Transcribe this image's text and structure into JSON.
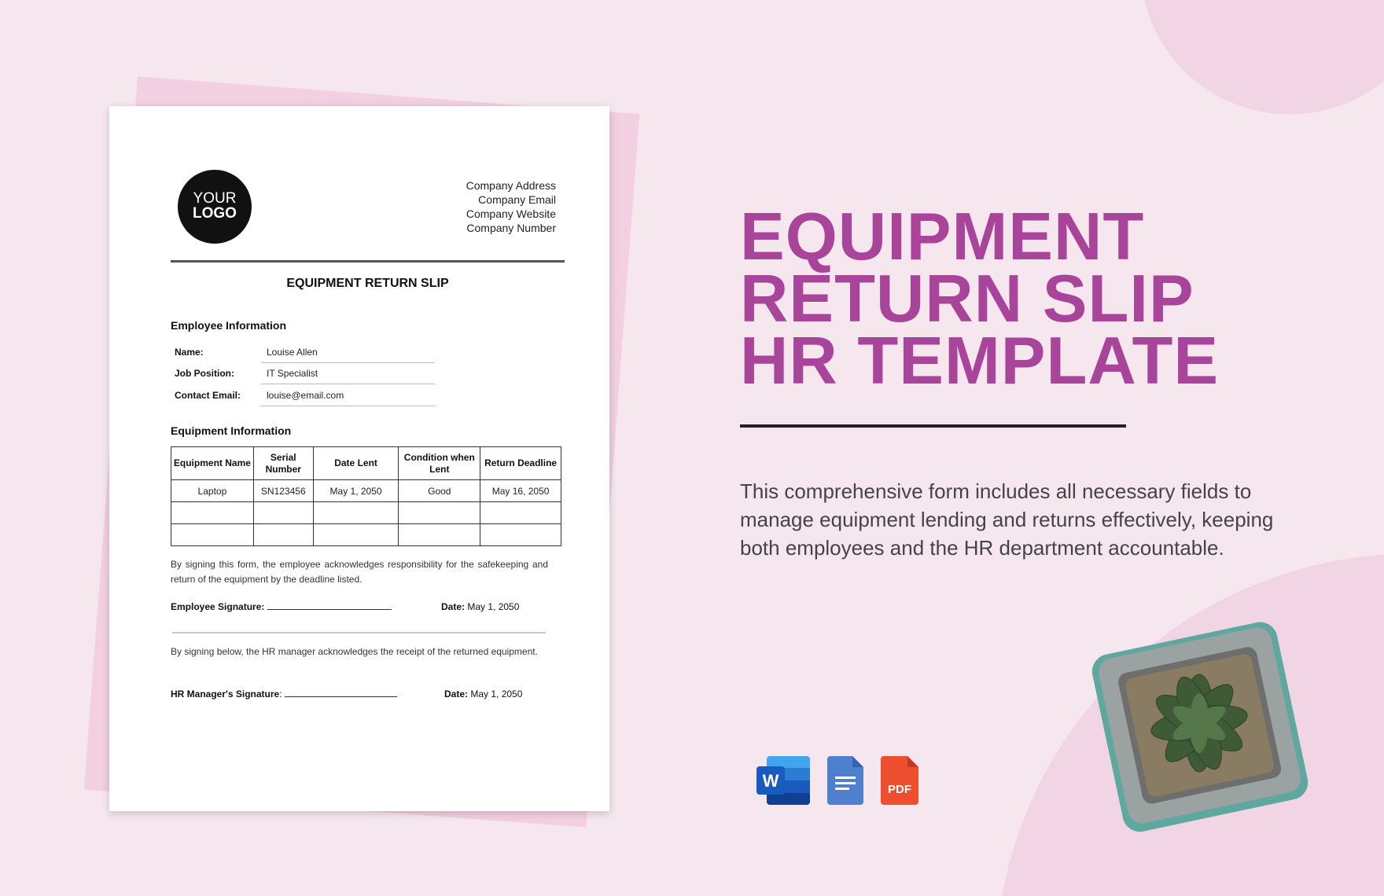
{
  "logo": {
    "line1": "YOUR",
    "line2": "LOGO"
  },
  "company": [
    "Company Address",
    "Company Email",
    "Company Website",
    "Company Number"
  ],
  "document": {
    "title": "EQUIPMENT RETURN SLIP",
    "employee_section": "Employee Information",
    "fields": [
      {
        "label": "Name:",
        "value": "Louise Allen"
      },
      {
        "label": "Job Position:",
        "value": "IT Specialist"
      },
      {
        "label": "Contact Email:",
        "value": "louise@email.com"
      }
    ],
    "equipment_section": "Equipment Information",
    "table": {
      "headers": [
        "Equipment Name",
        "Serial Number",
        "Date Lent",
        "Condition when Lent",
        "Return Deadline"
      ],
      "rows": [
        [
          "Laptop",
          "SN123456",
          "May 1, 2050",
          "Good",
          "May 16, 2050"
        ],
        [
          "",
          "",
          "",
          "",
          ""
        ],
        [
          "",
          "",
          "",
          "",
          ""
        ]
      ]
    },
    "employee_ack": "By signing this form, the employee acknowledges responsibility for the safekeeping and return of the equipment by the deadline listed.",
    "employee_signature_label": "Employee Signature:",
    "date_label": "Date:",
    "employee_date": "May 1, 2050",
    "hr_ack": "By signing below, the HR manager acknowledges the receipt of the returned equipment.",
    "hr_signature_label": "HR Manager's Signature",
    "hr_signature_colon": ":",
    "hr_date": "May 1, 2050"
  },
  "promo": {
    "heading": [
      "EQUIPMENT",
      "RETURN SLIP",
      "HR TEMPLATE"
    ],
    "description": [
      "This comprehensive form includes all necessary fields to",
      "manage equipment lending and returns effectively, keeping",
      "both employees and the HR department accountable."
    ],
    "heading_color": "#a8449a"
  },
  "formats": [
    {
      "icon": "word-icon",
      "letter": "W"
    },
    {
      "icon": "google-docs-icon"
    },
    {
      "icon": "pdf-icon",
      "label": "PDF"
    }
  ]
}
